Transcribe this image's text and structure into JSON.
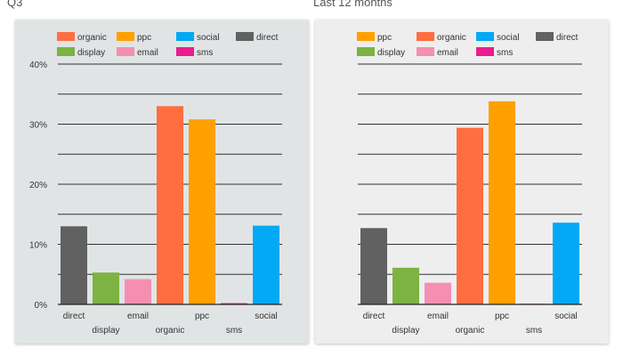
{
  "chart_data": [
    {
      "type": "bar",
      "title": "Q3",
      "background": "#e1e4e5",
      "y_ticks": [
        "0%",
        "10%",
        "20%",
        "30%",
        "40%"
      ],
      "ylim": [
        0,
        40
      ],
      "grid": true,
      "legend": [
        {
          "name": "organic",
          "color": "#ff6e40"
        },
        {
          "name": "ppc",
          "color": "#ffa000"
        },
        {
          "name": "social",
          "color": "#03a9f4"
        },
        {
          "name": "direct",
          "color": "#616161"
        },
        {
          "name": "display",
          "color": "#7cb342"
        },
        {
          "name": "email",
          "color": "#f48fb1"
        },
        {
          "name": "sms",
          "color": "#e91e8c"
        }
      ],
      "categories": [
        "direct",
        "display",
        "email",
        "organic",
        "ppc",
        "sms",
        "social"
      ],
      "values": [
        13,
        5.3,
        4.2,
        33,
        30.8,
        0.2,
        13.1
      ],
      "colors": [
        "#616161",
        "#7cb342",
        "#f48fb1",
        "#ff6e40",
        "#ffa000",
        "#e91e8c",
        "#03a9f4"
      ]
    },
    {
      "type": "bar",
      "title": "Last 12 months",
      "background": "#eeeeee",
      "y_ticks": [],
      "ylim": [
        0,
        40
      ],
      "grid": true,
      "legend": [
        {
          "name": "ppc",
          "color": "#ffa000"
        },
        {
          "name": "organic",
          "color": "#ff6e40"
        },
        {
          "name": "social",
          "color": "#03a9f4"
        },
        {
          "name": "direct",
          "color": "#616161"
        },
        {
          "name": "display",
          "color": "#7cb342"
        },
        {
          "name": "email",
          "color": "#f48fb1"
        },
        {
          "name": "sms",
          "color": "#e91e8c"
        }
      ],
      "categories": [
        "direct",
        "display",
        "email",
        "organic",
        "ppc",
        "sms",
        "social"
      ],
      "values": [
        12.7,
        6.1,
        3.6,
        29.4,
        33.8,
        0.1,
        13.6
      ],
      "colors": [
        "#616161",
        "#7cb342",
        "#f48fb1",
        "#ff6e40",
        "#ffa000",
        "#e91e8c",
        "#03a9f4"
      ]
    }
  ]
}
